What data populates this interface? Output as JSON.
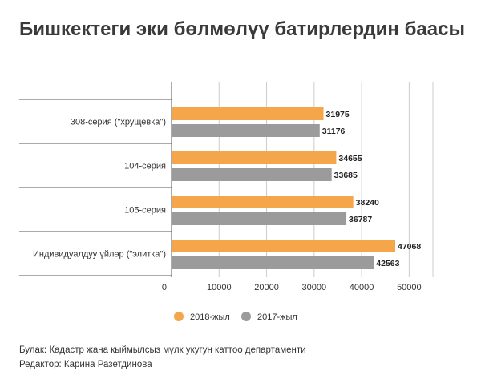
{
  "title": "Бишкектеги эки бөлмөлүү батирлердин баасы",
  "chart_data": {
    "type": "bar",
    "orientation": "horizontal",
    "categories": [
      "308-серия (\"хрущевка\")",
      "104-серия",
      "105-серия",
      "Индивидуалдуу үйлөр (\"элитка\")"
    ],
    "series": [
      {
        "name": "2018-жыл",
        "color": "#f5a54a",
        "values": [
          31975,
          34655,
          38240,
          47068
        ]
      },
      {
        "name": "2017-жыл",
        "color": "#9b9b9b",
        "values": [
          31176,
          33685,
          36787,
          42563
        ]
      }
    ],
    "xlim": [
      0,
      55000
    ],
    "xticks": [
      0,
      10000,
      20000,
      30000,
      40000,
      50000
    ],
    "xtick_labels": [
      "0",
      "10000",
      "20000",
      "30000",
      "40000",
      "50000"
    ],
    "grid": true,
    "legend_position": "bottom"
  },
  "footer": {
    "source": "Булак: Кадастр жана кыймылсыз мүлк укугун каттоо департаменти",
    "editor": "Редактор: Карина Разетдинова"
  }
}
